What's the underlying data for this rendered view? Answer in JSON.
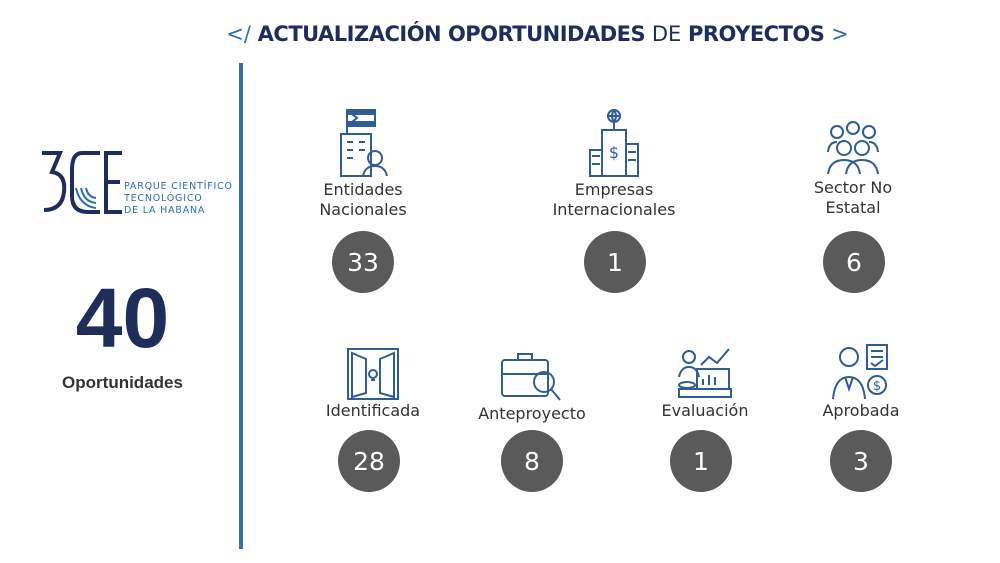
{
  "header": {
    "open": "</",
    "word1": "ACTUALIZACIÓN OPORTUNIDADES",
    "word2": "DE",
    "word3": "PROYECTOS",
    "close": ">"
  },
  "brand": {
    "logo_mark": "3CE",
    "line1": "PARQUE CIENTÍFICO",
    "line2": "TECNOLÓGICO",
    "line3": "DE LA HABANA"
  },
  "summary": {
    "total": "40",
    "label": "Oportunidades"
  },
  "by_entity": [
    {
      "label_line1": "Entidades",
      "label_line2": "Nacionales",
      "value": "33",
      "icon": "building-flag-icon"
    },
    {
      "label_line1": "Empresas",
      "label_line2": "Internacionales",
      "value": "1",
      "icon": "bank-globe-icon"
    },
    {
      "label_line1": "Sector No",
      "label_line2": "Estatal",
      "value": "6",
      "icon": "people-group-icon"
    }
  ],
  "by_stage": [
    {
      "label": "Identificada",
      "value": "28",
      "icon": "door-lightbulb-icon"
    },
    {
      "label": "Anteproyecto",
      "value": "8",
      "icon": "briefcase-magnifier-icon"
    },
    {
      "label": "Evaluación",
      "value": "1",
      "icon": "presenter-chart-icon"
    },
    {
      "label": "Aprobada",
      "value": "3",
      "icon": "businessman-checklist-icon"
    }
  ],
  "colors": {
    "navy": "#1f2d5a",
    "accent": "#3a6ea5",
    "circle": "#5a5a5a"
  }
}
